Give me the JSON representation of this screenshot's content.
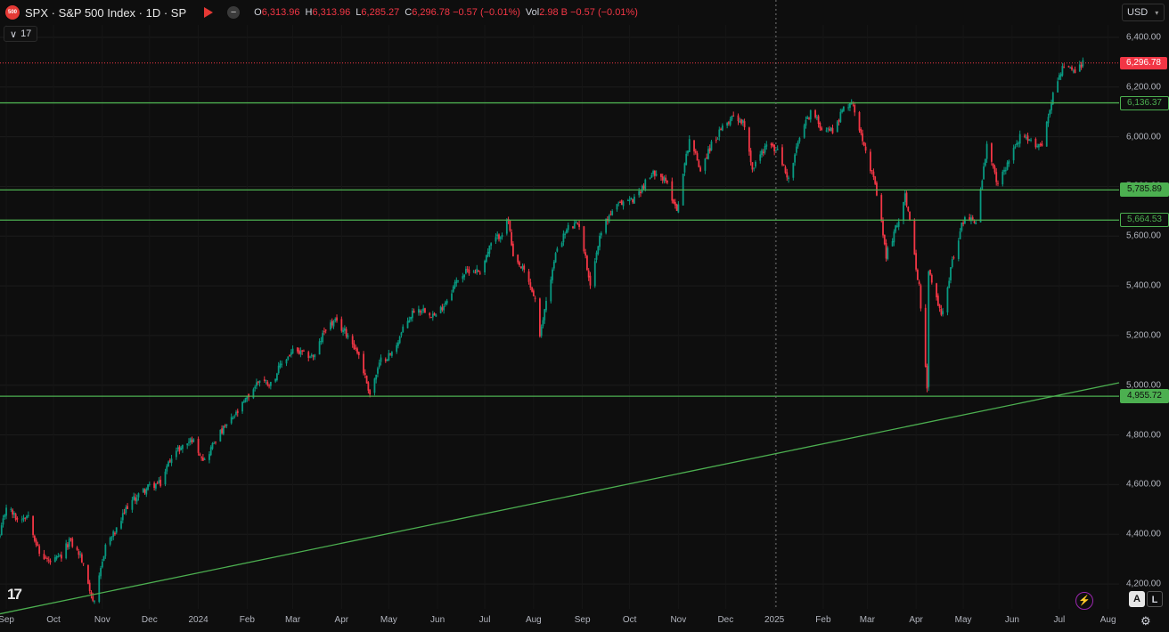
{
  "header": {
    "logo_text": "500",
    "symbol": "SPX · S&P 500 Index · 1D · SP",
    "ohlc": [
      {
        "k": "O",
        "v": "6,313.96"
      },
      {
        "k": "H",
        "v": "6,313.96"
      },
      {
        "k": "L",
        "v": "6,285.27"
      },
      {
        "k": "C",
        "v": "6,296.78 −0.57 (−0.01%)"
      },
      {
        "k": "Vol",
        "v": "2.98 B −0.57 (−0.01%)"
      }
    ],
    "indicator_count": "17",
    "currency": "USD"
  },
  "footer": {
    "logo": "17",
    "btn_a": "A",
    "btn_l": "L"
  },
  "colors": {
    "up": "#089981",
    "down": "#f23645",
    "level": "#4caf50",
    "background": "#0e0e0e"
  },
  "chart_data": {
    "type": "candlestick",
    "title": "",
    "y_axis": {
      "ticks": [
        "6,400.00",
        "6,200.00",
        "6,000.00",
        "5,800.00",
        "5,600.00",
        "5,400.00",
        "5,200.00",
        "5,000.00",
        "4,800.00",
        "4,600.00",
        "4,400.00",
        "4,200.00"
      ],
      "ylim": [
        4100,
        6450
      ]
    },
    "x_axis": {
      "ticks": [
        "Sep",
        "Oct",
        "Nov",
        "Dec",
        "2024",
        "Feb",
        "Mar",
        "Apr",
        "May",
        "Jun",
        "Jul",
        "Aug",
        "Sep",
        "Oct",
        "Nov",
        "Dec",
        "2025",
        "Feb",
        "Mar",
        "Apr",
        "May",
        "Jun",
        "Jul",
        "Aug"
      ],
      "range": [
        "2023-08-28",
        "2025-08-08"
      ]
    },
    "last_price": {
      "value": 6296.78,
      "label": "6,296.78"
    },
    "horizontal_levels": [
      {
        "value": 6136.37,
        "label": "6,136.37"
      },
      {
        "value": 5785.89,
        "label": "5,785.89"
      },
      {
        "value": 5664.53,
        "label": "5,664.53"
      },
      {
        "value": 4955.72,
        "label": "4,955.72"
      }
    ],
    "trendline": {
      "from": {
        "date": "2023-08-28",
        "price": 4080
      },
      "to": {
        "date": "2025-08-08",
        "price": 5010
      }
    },
    "crosshair_date": "2025-01-02",
    "price_path": [
      [
        "2023-08-28",
        4390
      ],
      [
        "2023-09-01",
        4515
      ],
      [
        "2023-09-08",
        4460
      ],
      [
        "2023-09-15",
        4480
      ],
      [
        "2023-09-22",
        4320
      ],
      [
        "2023-09-29",
        4288
      ],
      [
        "2023-10-06",
        4308
      ],
      [
        "2023-10-11",
        4376
      ],
      [
        "2023-10-18",
        4314
      ],
      [
        "2023-10-27",
        4117
      ],
      [
        "2023-11-03",
        4358
      ],
      [
        "2023-11-10",
        4415
      ],
      [
        "2023-11-17",
        4514
      ],
      [
        "2023-11-24",
        4559
      ],
      [
        "2023-12-01",
        4594
      ],
      [
        "2023-12-08",
        4604
      ],
      [
        "2023-12-15",
        4719
      ],
      [
        "2023-12-22",
        4754
      ],
      [
        "2023-12-28",
        4783
      ],
      [
        "2024-01-05",
        4697
      ],
      [
        "2024-01-12",
        4783
      ],
      [
        "2024-01-19",
        4839
      ],
      [
        "2024-01-26",
        4890
      ],
      [
        "2024-02-02",
        4958
      ],
      [
        "2024-02-09",
        5026
      ],
      [
        "2024-02-16",
        5005
      ],
      [
        "2024-02-23",
        5088
      ],
      [
        "2024-03-01",
        5137
      ],
      [
        "2024-03-08",
        5123
      ],
      [
        "2024-03-15",
        5117
      ],
      [
        "2024-03-22",
        5234
      ],
      [
        "2024-03-28",
        5254
      ],
      [
        "2024-04-05",
        5204
      ],
      [
        "2024-04-12",
        5123
      ],
      [
        "2024-04-19",
        4967
      ],
      [
        "2024-04-26",
        5100
      ],
      [
        "2024-05-03",
        5128
      ],
      [
        "2024-05-10",
        5223
      ],
      [
        "2024-05-17",
        5303
      ],
      [
        "2024-05-24",
        5305
      ],
      [
        "2024-05-31",
        5277
      ],
      [
        "2024-06-07",
        5347
      ],
      [
        "2024-06-14",
        5431
      ],
      [
        "2024-06-21",
        5464
      ],
      [
        "2024-06-28",
        5460
      ],
      [
        "2024-07-05",
        5567
      ],
      [
        "2024-07-12",
        5615
      ],
      [
        "2024-07-16",
        5667
      ],
      [
        "2024-07-19",
        5505
      ],
      [
        "2024-07-26",
        5459
      ],
      [
        "2024-08-02",
        5346
      ],
      [
        "2024-08-05",
        5186
      ],
      [
        "2024-08-09",
        5344
      ],
      [
        "2024-08-16",
        5554
      ],
      [
        "2024-08-23",
        5634
      ],
      [
        "2024-08-30",
        5648
      ],
      [
        "2024-09-06",
        5408
      ],
      [
        "2024-09-13",
        5626
      ],
      [
        "2024-09-20",
        5703
      ],
      [
        "2024-09-27",
        5738
      ],
      [
        "2024-10-04",
        5751
      ],
      [
        "2024-10-11",
        5815
      ],
      [
        "2024-10-18",
        5864
      ],
      [
        "2024-10-25",
        5808
      ],
      [
        "2024-10-31",
        5705
      ],
      [
        "2024-11-08",
        5995
      ],
      [
        "2024-11-15",
        5870
      ],
      [
        "2024-11-22",
        5969
      ],
      [
        "2024-11-29",
        6032
      ],
      [
        "2024-12-06",
        6090
      ],
      [
        "2024-12-13",
        6051
      ],
      [
        "2024-12-18",
        5872
      ],
      [
        "2024-12-27",
        5970
      ],
      [
        "2025-01-03",
        5942
      ],
      [
        "2025-01-10",
        5827
      ],
      [
        "2025-01-17",
        5997
      ],
      [
        "2025-01-24",
        6101
      ],
      [
        "2025-01-31",
        6040
      ],
      [
        "2025-02-07",
        6025
      ],
      [
        "2025-02-14",
        6114
      ],
      [
        "2025-02-19",
        6144
      ],
      [
        "2025-02-28",
        5955
      ],
      [
        "2025-03-07",
        5770
      ],
      [
        "2025-03-13",
        5521
      ],
      [
        "2025-03-21",
        5667
      ],
      [
        "2025-03-25",
        5776
      ],
      [
        "2025-04-03",
        5396
      ],
      [
        "2025-04-08",
        4982
      ],
      [
        "2025-04-09",
        5457
      ],
      [
        "2025-04-17",
        5282
      ],
      [
        "2025-04-25",
        5525
      ],
      [
        "2025-05-02",
        5686
      ],
      [
        "2025-05-09",
        5659
      ],
      [
        "2025-05-16",
        5958
      ],
      [
        "2025-05-23",
        5802
      ],
      [
        "2025-05-30",
        5911
      ],
      [
        "2025-06-06",
        6000
      ],
      [
        "2025-06-13",
        5977
      ],
      [
        "2025-06-20",
        5967
      ],
      [
        "2025-06-27",
        6173
      ],
      [
        "2025-07-03",
        6279
      ],
      [
        "2025-07-11",
        6260
      ],
      [
        "2025-07-16",
        6296.78
      ]
    ]
  }
}
